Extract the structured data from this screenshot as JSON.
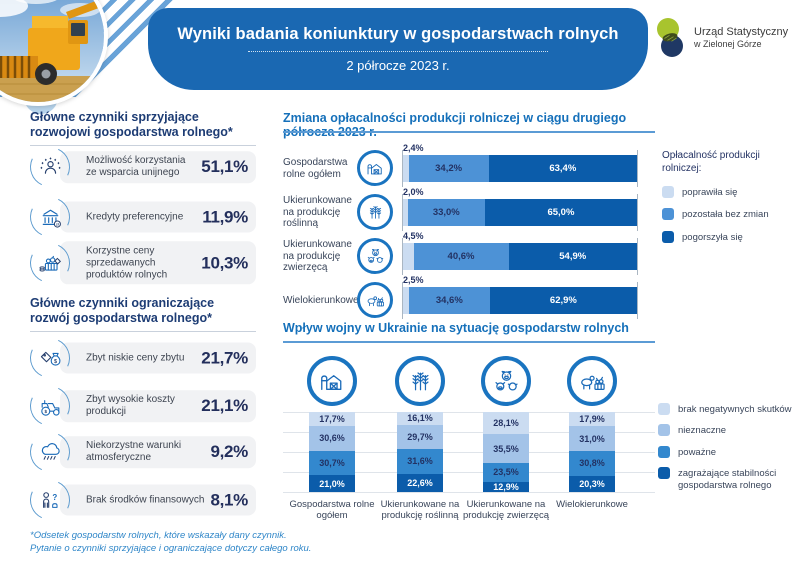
{
  "header": {
    "title": "Wyniki badania koniunktury w gospodarstwach rolnych",
    "subtitle": "2 półrocze 2023 r."
  },
  "logo": {
    "name": "Urząd Statystyczny w Zielonej Górze",
    "line1": "Urząd Statystyczny",
    "line2": "w Zielonej Górze"
  },
  "factors_positive": {
    "title": "Główne czynniki sprzyjające rozwojowi gospodarstwa rolnego*",
    "items": [
      {
        "icon": "eu-support-icon",
        "label": "Możliwość korzystania ze wsparcia unijnego",
        "value": "51,1%"
      },
      {
        "icon": "bank-icon",
        "label": "Kredyty preferencyjne",
        "value": "11,9%"
      },
      {
        "icon": "farm-products-icon",
        "label": "Korzystne ceny sprzedawanych produktów rolnych",
        "value": "10,3%"
      }
    ]
  },
  "factors_negative": {
    "title": "Główne czynniki ograniczające rozwój gospodarstwa rolnego*",
    "items": [
      {
        "icon": "low-prices-icon",
        "label": "Zbyt niskie ceny zbytu",
        "value": "21,7%"
      },
      {
        "icon": "tractor-icon",
        "label": "Zbyt wysokie koszty produkcji",
        "value": "21,1%"
      },
      {
        "icon": "rain-cloud-icon",
        "label": "Niekorzystne warunki atmosferyczne",
        "value": "9,2%"
      },
      {
        "icon": "no-funds-icon",
        "label": "Brak środków finansowych",
        "value": "8,1%"
      }
    ]
  },
  "chart_data": [
    {
      "type": "bar",
      "orientation": "horizontal-stacked",
      "title": "Zmiana opłacalności produkcji rolniczej w ciągu drugiego półrocza 2023 r.",
      "legend_title": "Opłacalność produkcji rolniczej:",
      "legend_position": "right",
      "xlim": [
        0,
        100
      ],
      "categories": [
        "Gospodarstwa rolne ogółem",
        "Ukierunkowane na produkcję roślinną",
        "Ukierunkowane na produkcję zwierzęcą",
        "Wielokierunkowe"
      ],
      "category_icons": [
        "barn-icon",
        "wheat-icon",
        "livestock-icon",
        "mixed-farming-icon"
      ],
      "series": [
        {
          "name": "poprawiła się",
          "color": "#cbdcf1",
          "values": [
            2.4,
            2.0,
            4.5,
            2.5
          ],
          "labels": [
            "2,4%",
            "2,0%",
            "4,5%",
            "2,5%"
          ]
        },
        {
          "name": "pozostała bez zmian",
          "color": "#4d92d6",
          "values": [
            34.2,
            33.0,
            40.6,
            34.6
          ],
          "labels": [
            "34,2%",
            "33,0%",
            "40,6%",
            "34,6%"
          ]
        },
        {
          "name": "pogorszyła się",
          "color": "#0b5caa",
          "values": [
            63.4,
            65.0,
            54.9,
            62.9
          ],
          "labels": [
            "63,4%",
            "65,0%",
            "54,9%",
            "62,9%"
          ]
        }
      ]
    },
    {
      "type": "bar",
      "orientation": "vertical-stacked",
      "title": "Wpływ wojny w Ukrainie na sytuację gospodarstw rolnych",
      "legend_position": "right",
      "ylim": [
        0,
        100
      ],
      "grid": true,
      "categories": [
        "Gospodarstwa rolne ogółem",
        "Ukierunkowane na produkcję roślinną",
        "Ukierunkowane na produkcję zwierzęcą",
        "Wielokierunkowe"
      ],
      "category_icons": [
        "barn-icon",
        "wheat-icon",
        "livestock-icon",
        "mixed-farming-icon"
      ],
      "series": [
        {
          "name": "brak negatywnych skutków",
          "color": "#cbdcf1",
          "values": [
            17.7,
            16.1,
            28.1,
            17.9
          ],
          "labels": [
            "17,7%",
            "16,1%",
            "28,1%",
            "17,9%"
          ]
        },
        {
          "name": "nieznaczne",
          "color": "#a3c3e8",
          "values": [
            30.6,
            29.7,
            35.5,
            31.0
          ],
          "labels": [
            "30,6%",
            "29,7%",
            "35,5%",
            "31,0%"
          ]
        },
        {
          "name": "poważne",
          "color": "#3388ce",
          "values": [
            30.7,
            31.6,
            23.5,
            30.8
          ],
          "labels": [
            "30,7%",
            "31,6%",
            "23,5%",
            "30,8%"
          ]
        },
        {
          "name": "zagrażające stabilności gospodarstwa rolnego",
          "color": "#0b5caa",
          "values": [
            21.0,
            22.6,
            12.9,
            20.3
          ],
          "labels": [
            "21,0%",
            "22,6%",
            "12,9%",
            "20,3%"
          ]
        }
      ]
    }
  ],
  "footnote": {
    "line1": "*Odsetek gospodarstw rolnych, które wskazały dany czynnik.",
    "line2": "Pytanie o czynniki sprzyjające i ograniczające dotyczy całego roku."
  },
  "colors": {
    "brand_blue": "#1a68b2",
    "chart_title_blue": "#1570ba",
    "navy_text": "#232f5c",
    "light_blue": "#cbdcf1",
    "light_medium_blue": "#a3c3e8",
    "medium_blue": "#3388ce",
    "bar_medium_blue": "#4d92d6",
    "dark_blue": "#0b5caa",
    "footnote_blue": "#2f86c8"
  }
}
